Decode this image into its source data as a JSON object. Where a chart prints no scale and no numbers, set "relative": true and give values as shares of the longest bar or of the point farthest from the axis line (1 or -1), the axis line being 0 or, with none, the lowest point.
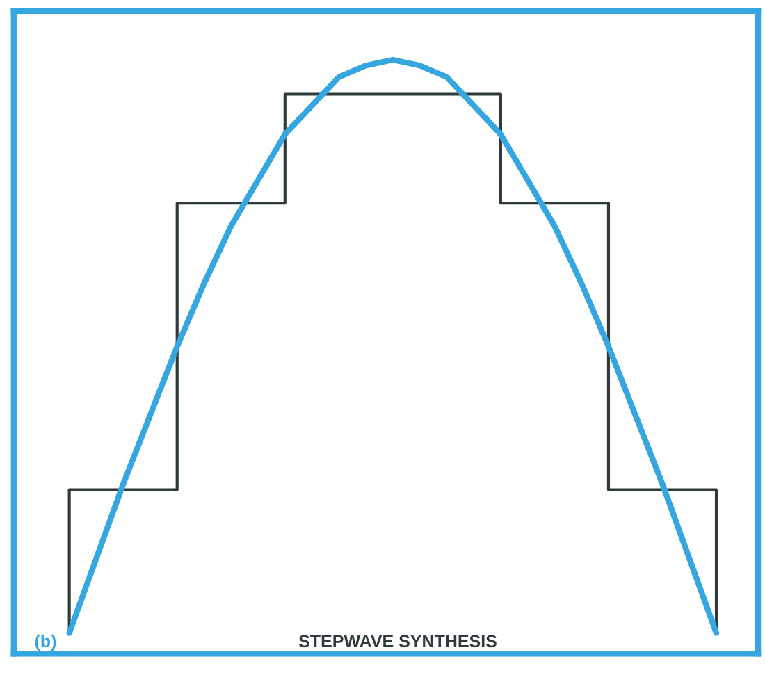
{
  "chart_data": {
    "type": "line",
    "title": "STEPWAVE SYNTHESIS",
    "annotations": [
      "(b)"
    ],
    "relative": true,
    "categories": [
      null,
      null,
      null,
      null,
      null,
      null,
      null,
      null,
      null,
      null,
      null,
      null,
      null,
      null,
      null,
      null,
      null,
      null,
      null,
      null,
      null,
      null,
      null,
      null,
      null
    ],
    "series": [
      {
        "type": "step",
        "color": "#2e3b3a",
        "values": [
          0.25,
          0.25,
          0.25,
          0.25,
          0.75,
          0.75,
          0.75,
          0.75,
          0.94,
          0.94,
          0.94,
          0.94,
          0.94,
          0.94,
          0.94,
          0.94,
          0.75,
          0.75,
          0.75,
          0.75,
          0.25,
          0.25,
          0.25,
          0.25,
          0
        ]
      },
      {
        "type": "line",
        "color": "#35a6df",
        "values": [
          0,
          0.13,
          0.26,
          0.38,
          0.5,
          0.61,
          0.71,
          0.79,
          0.87,
          0.92,
          0.97,
          0.99,
          1,
          0.99,
          0.97,
          0.92,
          0.87,
          0.79,
          0.71,
          0.61,
          0.5,
          0.38,
          0.26,
          0.13,
          0
        ]
      }
    ]
  }
}
